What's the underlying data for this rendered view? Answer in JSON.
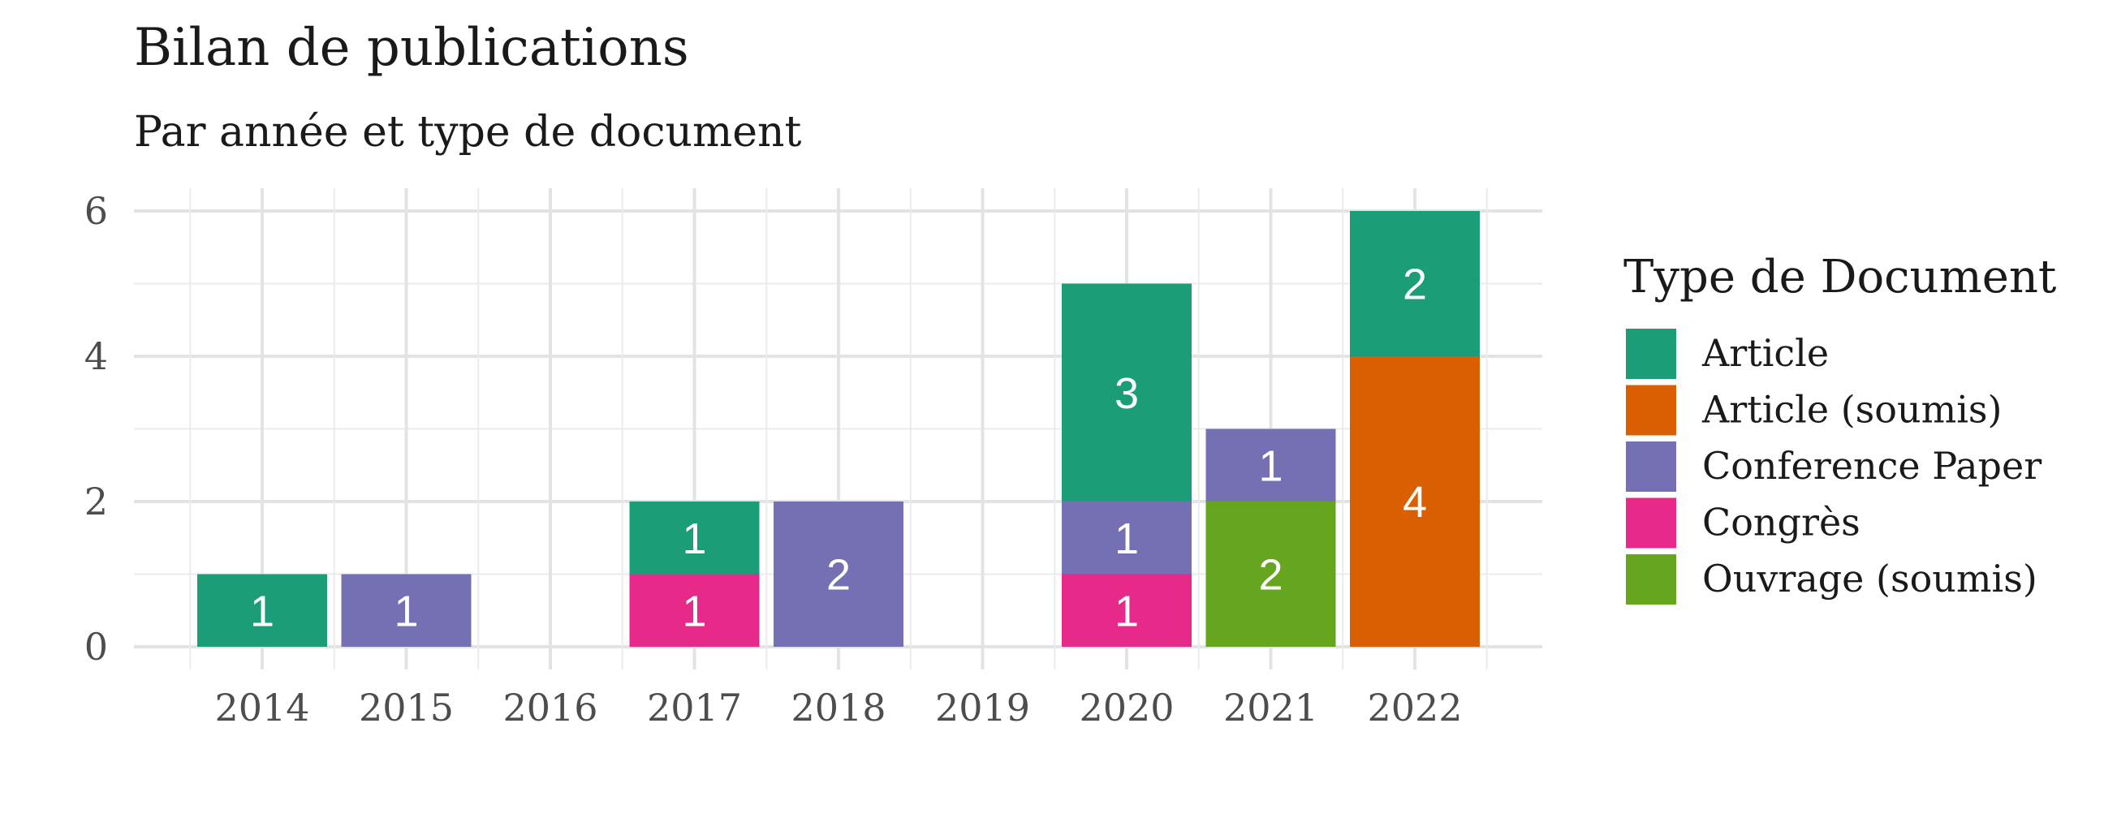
{
  "chart_data": {
    "type": "bar",
    "stacked": true,
    "title": "Bilan de publications",
    "subtitle": "Par année et type de document",
    "categories": [
      "2014",
      "2015",
      "2016",
      "2017",
      "2018",
      "2019",
      "2020",
      "2021",
      "2022"
    ],
    "y_ticks": [
      "0",
      "2",
      "4",
      "6"
    ],
    "ylim": [
      0,
      6
    ],
    "grid": true,
    "legend": {
      "title": "Type de Document",
      "placement": "right",
      "entries": [
        "Article",
        "Article (soumis)",
        "Conference Paper",
        "Congrès",
        "Ouvrage (soumis)"
      ]
    },
    "series": [
      {
        "name": "Congrès",
        "color": "#E7298A",
        "values": [
          0,
          0,
          0,
          1,
          0,
          0,
          1,
          0,
          0
        ]
      },
      {
        "name": "Ouvrage (soumis)",
        "color": "#66A61E",
        "values": [
          0,
          0,
          0,
          0,
          0,
          0,
          0,
          2,
          0
        ]
      },
      {
        "name": "Article (soumis)",
        "color": "#D95F02",
        "values": [
          0,
          0,
          0,
          0,
          0,
          0,
          0,
          0,
          4
        ]
      },
      {
        "name": "Conference Paper",
        "color": "#7570B3",
        "values": [
          0,
          1,
          0,
          0,
          2,
          0,
          1,
          1,
          0
        ]
      },
      {
        "name": "Article",
        "color": "#1B9E77",
        "values": [
          1,
          0,
          0,
          1,
          0,
          0,
          3,
          0,
          2
        ]
      }
    ]
  }
}
